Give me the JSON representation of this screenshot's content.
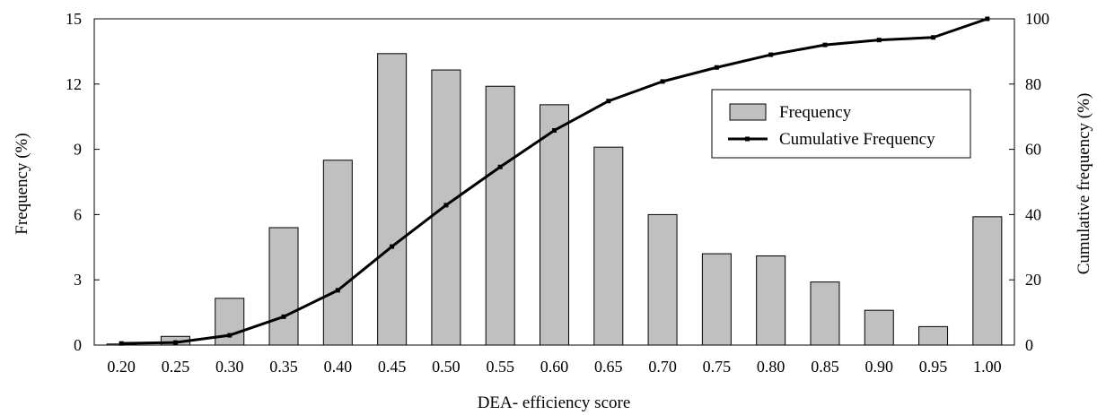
{
  "chart_data": {
    "type": "bar",
    "categories": [
      "0.20",
      "0.25",
      "0.30",
      "0.35",
      "0.40",
      "0.45",
      "0.50",
      "0.55",
      "0.60",
      "0.65",
      "0.70",
      "0.75",
      "0.80",
      "0.85",
      "0.90",
      "0.95",
      "1.00"
    ],
    "series": [
      {
        "name": "Frequency",
        "type": "bar",
        "axis": "left",
        "values": [
          0.05,
          0.4,
          2.15,
          5.4,
          8.5,
          13.4,
          12.65,
          11.9,
          11.05,
          9.1,
          6.0,
          4.2,
          4.1,
          2.9,
          1.6,
          0.85,
          5.9
        ]
      },
      {
        "name": "Cumulative Frequency",
        "type": "line",
        "axis": "right",
        "values": [
          0.5,
          0.8,
          3.0,
          8.7,
          16.8,
          30.2,
          42.9,
          54.6,
          65.8,
          74.8,
          80.8,
          85.1,
          89.0,
          92.0,
          93.5,
          94.3,
          100.0
        ]
      }
    ],
    "xlabel": "DEA- efficiency score",
    "ylabel": "Frequency (%)",
    "y2label": "Cumulative frequency (%)",
    "ylim": [
      0,
      15
    ],
    "y2lim": [
      0,
      100
    ],
    "yticks": [
      "0",
      "3",
      "6",
      "9",
      "12",
      "15"
    ],
    "y2ticks": [
      "0",
      "20",
      "40",
      "60",
      "80",
      "100"
    ],
    "grid": false,
    "legend_position": "upper-right",
    "colors": {
      "bar_fill": "#c0c0c0",
      "bar_stroke": "#000000",
      "line": "#000000"
    }
  }
}
